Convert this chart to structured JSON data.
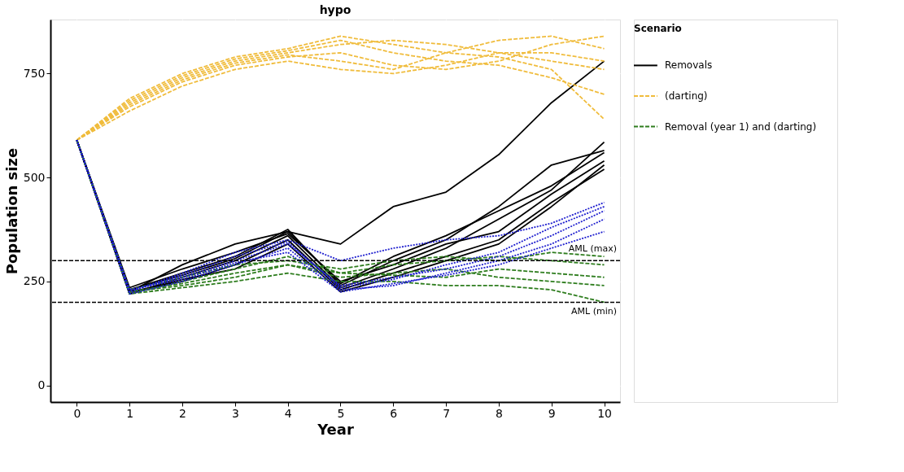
{
  "chart_data": {
    "type": "line",
    "title": "hypo",
    "xlabel": "Year",
    "ylabel": "Population size",
    "legend_title": "Scenario",
    "legend": "right",
    "grid": true,
    "x": [
      0,
      1,
      2,
      3,
      4,
      5,
      6,
      7,
      8,
      9,
      10
    ],
    "xlim": [
      -0.5,
      10.3
    ],
    "xticks": [
      0,
      1,
      2,
      3,
      4,
      5,
      6,
      7,
      8,
      9,
      10
    ],
    "ylim": [
      -40,
      880
    ],
    "yticks": [
      0,
      250,
      500,
      750
    ],
    "series": [
      {
        "name": "Removals",
        "color": "#000000",
        "line_style": "solid",
        "values": [
          590,
          225,
          290,
          340,
          370,
          340,
          430,
          465,
          555,
          680,
          780
        ]
      },
      {
        "color": "#000000",
        "line_style": "solid",
        "values": [
          590,
          230,
          270,
          310,
          375,
          240,
          300,
          350,
          430,
          530,
          565
        ]
      },
      {
        "color": "#000000",
        "line_style": "solid",
        "values": [
          590,
          220,
          260,
          300,
          360,
          235,
          280,
          330,
          400,
          470,
          585
        ]
      },
      {
        "color": "#000000",
        "line_style": "solid",
        "values": [
          590,
          235,
          280,
          320,
          365,
          250,
          290,
          340,
          370,
          460,
          540
        ]
      },
      {
        "color": "#000000",
        "line_style": "solid",
        "values": [
          590,
          225,
          250,
          290,
          350,
          230,
          270,
          310,
          350,
          440,
          520
        ]
      },
      {
        "color": "#000000",
        "line_style": "solid",
        "values": [
          590,
          230,
          265,
          305,
          370,
          245,
          310,
          360,
          420,
          480,
          560
        ]
      },
      {
        "color": "#000000",
        "line_style": "solid",
        "values": [
          590,
          220,
          255,
          280,
          340,
          225,
          260,
          300,
          340,
          430,
          530
        ]
      },
      {
        "color": "#1f1fcf",
        "line_style": "dotted",
        "values": [
          590,
          225,
          270,
          320,
          350,
          300,
          330,
          350,
          360,
          390,
          440
        ]
      },
      {
        "color": "#1f1fcf",
        "line_style": "dotted",
        "values": [
          590,
          230,
          260,
          300,
          340,
          240,
          260,
          280,
          310,
          360,
          420
        ]
      },
      {
        "color": "#1f1fcf",
        "line_style": "dotted",
        "values": [
          590,
          220,
          250,
          290,
          330,
          230,
          240,
          270,
          300,
          340,
          400
        ]
      },
      {
        "color": "#1f1fcf",
        "line_style": "dotted",
        "values": [
          590,
          225,
          265,
          310,
          345,
          235,
          255,
          290,
          320,
          380,
          430
        ]
      },
      {
        "color": "#1f1fcf",
        "line_style": "dotted",
        "values": [
          590,
          230,
          255,
          295,
          320,
          225,
          245,
          265,
          290,
          330,
          370
        ]
      },
      {
        "name": "(darting)",
        "color": "#f0bc3c",
        "line_style": "dashed",
        "values": [
          590,
          680,
          740,
          780,
          800,
          820,
          830,
          820,
          800,
          800,
          780
        ]
      },
      {
        "color": "#f0bc3c",
        "line_style": "dashed",
        "values": [
          590,
          690,
          750,
          790,
          810,
          840,
          820,
          800,
          790,
          760,
          640
        ]
      },
      {
        "color": "#f0bc3c",
        "line_style": "dashed",
        "values": [
          590,
          670,
          730,
          770,
          790,
          800,
          770,
          760,
          780,
          820,
          840
        ]
      },
      {
        "color": "#f0bc3c",
        "line_style": "dashed",
        "values": [
          590,
          660,
          720,
          760,
          780,
          760,
          750,
          770,
          800,
          780,
          760
        ]
      },
      {
        "color": "#f0bc3c",
        "line_style": "dashed",
        "values": [
          590,
          685,
          745,
          785,
          805,
          830,
          800,
          780,
          770,
          740,
          700
        ]
      },
      {
        "color": "#f0bc3c",
        "line_style": "dashed",
        "values": [
          590,
          675,
          735,
          775,
          795,
          780,
          760,
          800,
          830,
          840,
          810
        ]
      },
      {
        "name": "Removal (year 1) and (darting)",
        "color": "#2e7d1e",
        "line_style": "dashed",
        "values": [
          590,
          220,
          250,
          280,
          310,
          270,
          290,
          300,
          310,
          300,
          290
        ]
      },
      {
        "color": "#2e7d1e",
        "line_style": "dashed",
        "values": [
          590,
          225,
          240,
          260,
          290,
          260,
          270,
          280,
          260,
          250,
          240
        ]
      },
      {
        "color": "#2e7d1e",
        "line_style": "dashed",
        "values": [
          590,
          230,
          260,
          290,
          300,
          280,
          300,
          310,
          300,
          320,
          310
        ]
      },
      {
        "color": "#2e7d1e",
        "line_style": "dashed",
        "values": [
          590,
          220,
          235,
          250,
          270,
          250,
          250,
          240,
          240,
          230,
          200
        ]
      },
      {
        "color": "#2e7d1e",
        "line_style": "dashed",
        "values": [
          590,
          225,
          245,
          270,
          290,
          270,
          265,
          260,
          280,
          270,
          260
        ]
      }
    ],
    "ref_lines": [
      {
        "axis": "y",
        "value": 300,
        "label": "AML (max)",
        "color": "#000000",
        "line_style": "dashed"
      },
      {
        "axis": "y",
        "value": 200,
        "label": "AML (min)",
        "color": "#000000",
        "line_style": "dashed"
      }
    ]
  }
}
